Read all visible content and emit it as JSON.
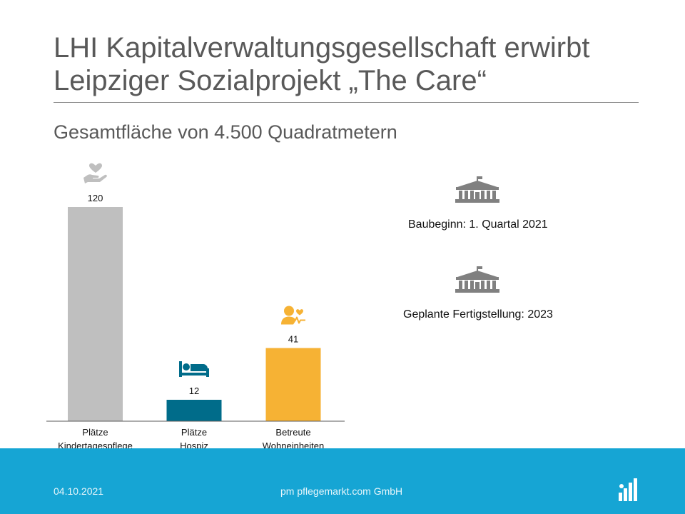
{
  "header": {
    "title_line1": "LHI Kapitalverwaltungsgesellschaft erwirbt",
    "title_line2": "Leipziger Sozialprojekt „The Care“",
    "subtitle": "Gesamtfläche von 4.500 Quadratmetern"
  },
  "chart_data": {
    "type": "bar",
    "categories": [
      [
        "Plätze",
        "Kindertagespflege"
      ],
      [
        "Plätze",
        "Hospiz"
      ],
      [
        "Betreute",
        "Wohneinheiten"
      ]
    ],
    "values": [
      120,
      12,
      41
    ],
    "data_labels": [
      "120",
      "12",
      "41"
    ],
    "bar_colors": [
      "#bfbfbf",
      "#006c8a",
      "#f6b234"
    ],
    "bar_icons": [
      "heart-hand-icon",
      "bed-icon",
      "person-care-icon"
    ],
    "ylim": [
      0,
      120
    ],
    "grid": false,
    "legend": "none"
  },
  "info": {
    "construction_start": "Baubeginn: 1. Quartal 2021",
    "planned_completion": "Geplante Fertigstellung: 2023",
    "icon": "building-icon",
    "icon_color": "#808080"
  },
  "footer": {
    "date": "04.10.2021",
    "company": "pm pflegemarkt.com GmbH",
    "background": "#16a5d4"
  }
}
